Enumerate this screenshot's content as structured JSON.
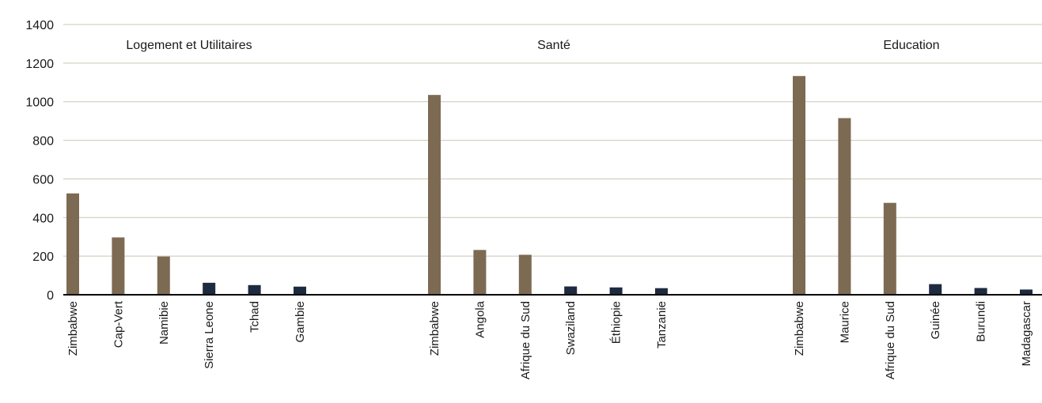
{
  "chart_data": {
    "type": "bar",
    "title": "",
    "xlabel": "",
    "ylabel": "",
    "ylim": [
      0,
      1400
    ],
    "yticks": [
      0,
      200,
      400,
      600,
      800,
      1000,
      1200,
      1400
    ],
    "grid": true,
    "colors": {
      "top": "#7d6a53",
      "bottom": "#1e2a3f",
      "grid": "#c8c8b4",
      "axis": "#000000"
    },
    "groups": [
      {
        "name": "Logement et Utilitaires",
        "categories": [
          "Zimbabwe",
          "Cap-Vert",
          "Namibie",
          "Sierra Leone",
          "Tchad",
          "Gambie"
        ],
        "values": [
          525,
          297,
          198,
          62,
          50,
          42
        ],
        "series": [
          "top",
          "top",
          "top",
          "bottom",
          "bottom",
          "bottom"
        ]
      },
      {
        "name": "Santé",
        "categories": [
          "Zimbabwe",
          "Angola",
          "Afrique du Sud",
          "Swaziland",
          "Éthiopie",
          "Tanzanie"
        ],
        "values": [
          1035,
          232,
          207,
          43,
          38,
          34
        ],
        "series": [
          "top",
          "top",
          "top",
          "bottom",
          "bottom",
          "bottom"
        ]
      },
      {
        "name": "Education",
        "categories": [
          "Zimbabwe",
          "Maurice",
          "Afrique du Sud",
          "Guinée",
          "Burundi",
          "Madagascar"
        ],
        "values": [
          1133,
          915,
          476,
          55,
          35,
          27
        ],
        "series": [
          "top",
          "top",
          "top",
          "bottom",
          "bottom",
          "bottom"
        ]
      }
    ]
  }
}
